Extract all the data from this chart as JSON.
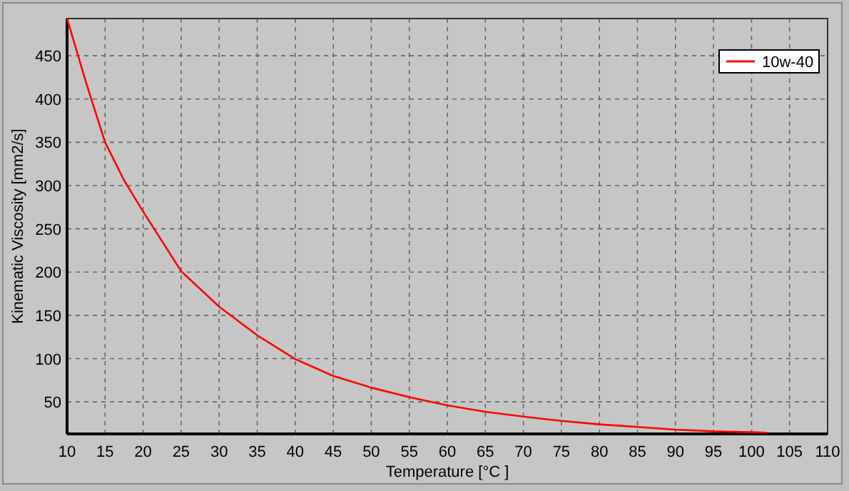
{
  "chart_data": {
    "type": "line",
    "xlabel": "Temperature [°C ]",
    "ylabel": "Kinematic Viscosity [mm2/s]",
    "xlim": [
      10,
      110
    ],
    "xticks": [
      10,
      15,
      20,
      25,
      30,
      35,
      40,
      45,
      50,
      55,
      60,
      65,
      70,
      75,
      80,
      85,
      90,
      95,
      100,
      105,
      110
    ],
    "ylim": [
      13,
      493
    ],
    "yticks": [
      50,
      100,
      150,
      200,
      250,
      300,
      350,
      400,
      450
    ],
    "grid": true,
    "legend": "top right",
    "marker": "none",
    "line_style": "solid",
    "series": [
      {
        "name": "10w-40",
        "color": "#ff0000",
        "x": [
          10,
          12.5,
          15,
          17.5,
          20,
          25,
          30,
          35,
          40,
          45,
          50,
          55,
          60,
          65,
          70,
          75,
          80,
          85,
          90,
          95,
          100,
          102
        ],
        "values": [
          493,
          419,
          350,
          306,
          270,
          201,
          160,
          127,
          99.5,
          80,
          66.5,
          55.5,
          46,
          38.5,
          33,
          28,
          24,
          21,
          18,
          16,
          15,
          14.5
        ]
      }
    ]
  }
}
